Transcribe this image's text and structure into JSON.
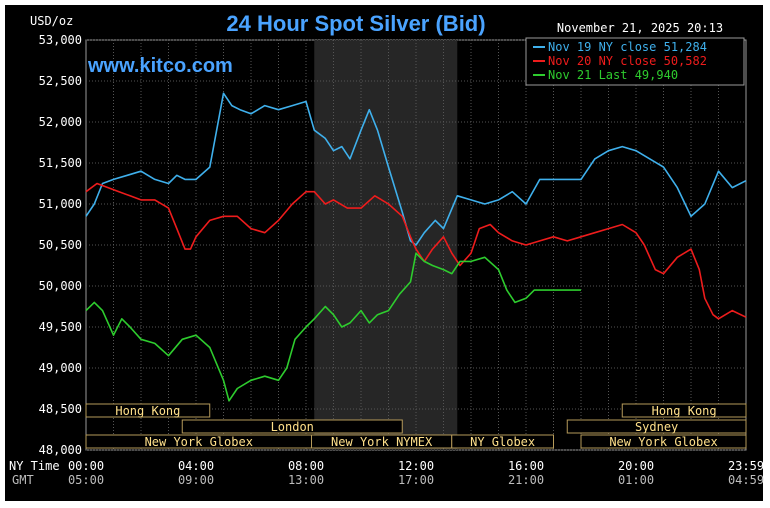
{
  "chart_data": {
    "type": "line",
    "title": "24 Hour Spot Silver (Bid)",
    "ylabel": "USD/oz",
    "brand": "www.kitco.com",
    "timestamp": "November 21, 2025 20:13",
    "ylim": [
      48000,
      53000
    ],
    "y_ticks": [
      "53,000",
      "52,500",
      "52,000",
      "51,500",
      "51,000",
      "50,500",
      "50,000",
      "49,500",
      "49,000",
      "48,500",
      "48,000"
    ],
    "x_axis_ny_label": "NY Time",
    "x_axis_gmt_label": "GMT",
    "x_ticks": [
      {
        "hour": 0,
        "ny": "00:00",
        "gmt": "05:00"
      },
      {
        "hour": 4,
        "ny": "04:00",
        "gmt": "09:00"
      },
      {
        "hour": 8,
        "ny": "08:00",
        "gmt": "13:00"
      },
      {
        "hour": 12,
        "ny": "12:00",
        "gmt": "17:00"
      },
      {
        "hour": 16,
        "ny": "16:00",
        "gmt": "21:00"
      },
      {
        "hour": 20,
        "ny": "20:00",
        "gmt": "01:00"
      },
      {
        "hour": 24,
        "ny": "23:59",
        "gmt": "04:59"
      }
    ],
    "shaded_session_hours": [
      8.3,
      13.5
    ],
    "sessions": [
      {
        "name": "Hong Kong",
        "row": 0,
        "start": 0,
        "end": 4.5
      },
      {
        "name": "Hong Kong",
        "row": 0,
        "start": 19.5,
        "end": 24
      },
      {
        "name": "London",
        "row": 1,
        "start": 3.5,
        "end": 11.5
      },
      {
        "name": "Sydney",
        "row": 1,
        "start": 17.5,
        "end": 24
      },
      {
        "name": "New York Globex",
        "row": 2,
        "start": 0,
        "end": 8.2
      },
      {
        "name": "New York NYMEX",
        "row": 2,
        "start": 8.2,
        "end": 13.3
      },
      {
        "name": "NY Globex",
        "row": 2,
        "start": 13.3,
        "end": 17
      },
      {
        "name": "New York Globex",
        "row": 2,
        "start": 18,
        "end": 24
      }
    ],
    "legend": [
      {
        "label": "Nov 19 NY close 51,284",
        "color": "#3fb0ec"
      },
      {
        "label": "Nov 20 NY close 50,582",
        "color": "#ee1c1c"
      },
      {
        "label": "Nov 21 Last 49,940",
        "color": "#2ecc2e"
      }
    ],
    "series": [
      {
        "color": "#3fb0ec",
        "x": [
          0,
          0.3,
          0.6,
          1,
          1.5,
          2,
          2.5,
          3,
          3.3,
          3.6,
          4,
          4.5,
          5,
          5.3,
          5.6,
          6,
          6.5,
          7,
          7.5,
          8,
          8.3,
          8.7,
          9,
          9.3,
          9.6,
          10,
          10.3,
          10.6,
          11,
          11.5,
          11.8,
          12,
          12.3,
          12.7,
          13,
          13.5,
          14,
          14.5,
          15,
          15.5,
          16,
          16.5,
          17,
          17.5,
          18,
          18.5,
          19,
          19.5,
          20,
          20.5,
          21,
          21.5,
          22,
          22.5,
          23,
          23.5,
          24
        ],
        "y": [
          50850,
          51000,
          51250,
          51300,
          51350,
          51400,
          51300,
          51250,
          51350,
          51300,
          51300,
          51450,
          52350,
          52200,
          52150,
          52100,
          52200,
          52150,
          52200,
          52250,
          51900,
          51800,
          51650,
          51700,
          51550,
          51900,
          52150,
          51900,
          51450,
          50900,
          50550,
          50500,
          50650,
          50800,
          50700,
          51100,
          51050,
          51000,
          51050,
          51150,
          51000,
          51300,
          51300,
          51300,
          51300,
          51550,
          51650,
          51700,
          51650,
          51550,
          51450,
          51200,
          50850,
          51000,
          51400,
          51200,
          51284
        ]
      },
      {
        "color": "#ee1c1c",
        "x": [
          0,
          0.4,
          0.8,
          1.2,
          1.6,
          2,
          2.5,
          3,
          3.3,
          3.6,
          3.8,
          4,
          4.5,
          5,
          5.5,
          6,
          6.5,
          7,
          7.5,
          8,
          8.3,
          8.7,
          9,
          9.5,
          10,
          10.5,
          11,
          11.5,
          11.8,
          12,
          12.3,
          12.6,
          13,
          13.3,
          13.6,
          14,
          14.3,
          14.7,
          15,
          15.5,
          16,
          16.5,
          17,
          17.5,
          18,
          18.5,
          19,
          19.5,
          20,
          20.3,
          20.7,
          21,
          21.5,
          22,
          22.3,
          22.5,
          22.8,
          23,
          23.5,
          24
        ],
        "y": [
          51150,
          51250,
          51200,
          51150,
          51100,
          51050,
          51050,
          50950,
          50700,
          50450,
          50450,
          50600,
          50800,
          50850,
          50850,
          50700,
          50650,
          50800,
          51000,
          51150,
          51150,
          51000,
          51050,
          50950,
          50950,
          51100,
          51000,
          50850,
          50600,
          50450,
          50300,
          50450,
          50600,
          50400,
          50250,
          50400,
          50700,
          50750,
          50650,
          50550,
          50500,
          50550,
          50600,
          50550,
          50600,
          50650,
          50700,
          50750,
          50650,
          50500,
          50200,
          50150,
          50350,
          50450,
          50200,
          49850,
          49650,
          49600,
          49700,
          49620
        ]
      },
      {
        "color": "#2ecc2e",
        "x": [
          0,
          0.3,
          0.6,
          1,
          1.3,
          1.6,
          2,
          2.5,
          3,
          3.5,
          4,
          4.5,
          5,
          5.2,
          5.5,
          6,
          6.5,
          7,
          7.3,
          7.6,
          8,
          8.3,
          8.7,
          9,
          9.3,
          9.6,
          10,
          10.3,
          10.6,
          11,
          11.4,
          11.8,
          12,
          12.3,
          12.6,
          13,
          13.3,
          13.6,
          14,
          14.5,
          15,
          15.3,
          15.6,
          16,
          16.3,
          16.6,
          17,
          17.5,
          18
        ],
        "y": [
          49700,
          49800,
          49700,
          49400,
          49600,
          49500,
          49350,
          49300,
          49150,
          49350,
          49400,
          49250,
          48850,
          48600,
          48750,
          48850,
          48900,
          48850,
          49000,
          49350,
          49500,
          49600,
          49750,
          49650,
          49500,
          49550,
          49700,
          49550,
          49650,
          49700,
          49900,
          50050,
          50400,
          50300,
          50250,
          50200,
          50150,
          50300,
          50300,
          50350,
          50200,
          49950,
          49800,
          49850,
          49950,
          49950,
          49950,
          49950,
          49950
        ]
      }
    ]
  }
}
